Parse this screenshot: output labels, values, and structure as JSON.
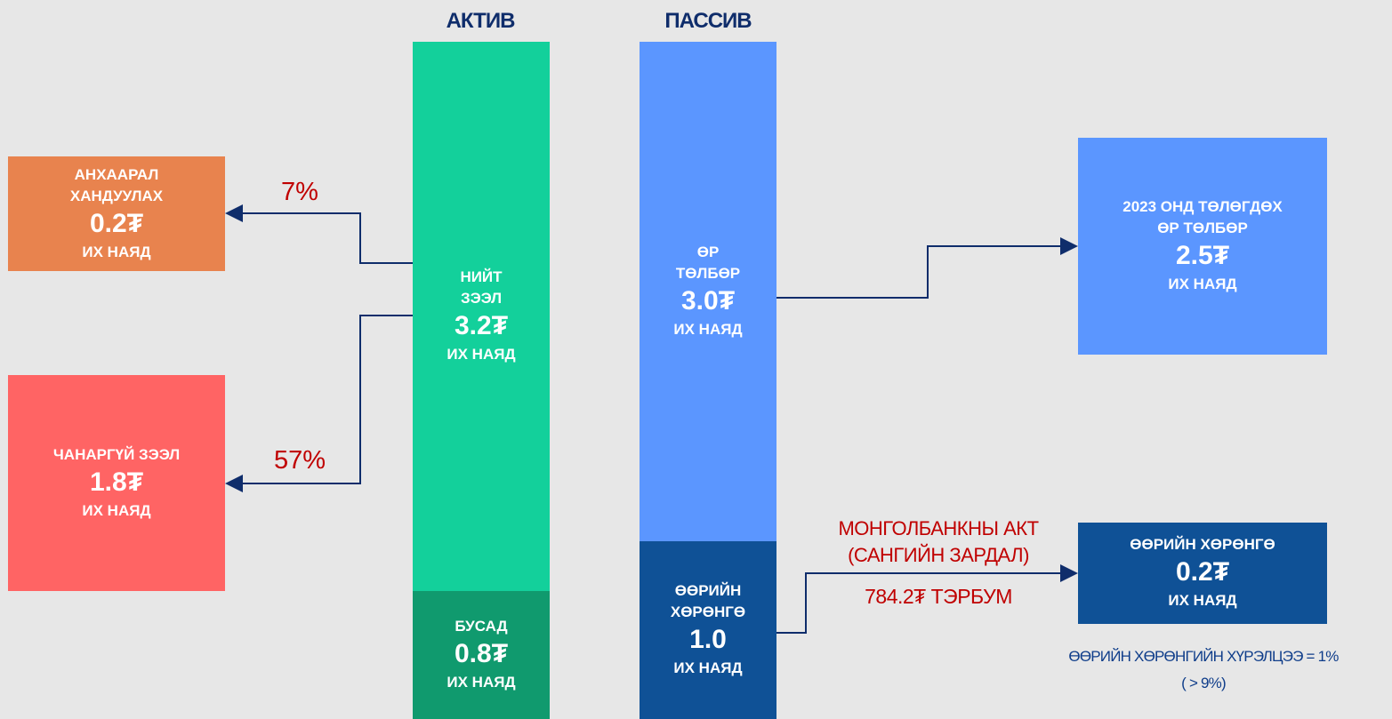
{
  "headers": {
    "assets": "АКТИВ",
    "liabilities": "ПАССИВ"
  },
  "nodes": {
    "watch": {
      "label": [
        "АНХААРАЛ",
        "ХАНДУУЛАХ"
      ],
      "value": "0.2₮",
      "unit": "ИХ НАЯД"
    },
    "bad_loans": {
      "label": [
        "ЧАНАРГҮЙ ЗЭЭЛ"
      ],
      "value": "1.8₮",
      "unit": "ИХ НАЯД"
    },
    "total_loans": {
      "label": [
        "НИЙТ",
        "ЗЭЭЛ"
      ],
      "value": "3.2₮",
      "unit": "ИХ НАЯД"
    },
    "other": {
      "label": [
        "БУСАД"
      ],
      "value": "0.8₮",
      "unit": "ИХ НАЯД"
    },
    "debt": {
      "label": [
        "ӨР",
        "ТӨЛБӨР"
      ],
      "value": "3.0₮",
      "unit": "ИХ НАЯД"
    },
    "equity": {
      "label": [
        "ӨӨРИЙН",
        "ХӨРӨНГӨ"
      ],
      "value": "1.0",
      "unit": "ИХ НАЯД"
    },
    "debt_2023": {
      "label": [
        "2023 ОНД ТӨЛӨГДӨХ",
        "ӨР ТӨЛБӨР"
      ],
      "value": "2.5₮",
      "unit": "ИХ НАЯД"
    },
    "equity_after": {
      "label": [
        "ӨӨРИЙН ХӨРӨНГӨ"
      ],
      "value": "0.2₮",
      "unit": "ИХ НАЯД"
    }
  },
  "edges": {
    "watch_share": "7%",
    "bad_share": "57%",
    "central_bank": [
      "МОНГОЛБАНКНЫ АКТ",
      "(САНГИЙН ЗАРДАЛ)"
    ],
    "central_bank_amount": "784.2₮ ТЭРБУМ"
  },
  "note": [
    "ӨӨРИЙН ХӨРӨНГИЙН ХҮРЭЛЦЭЭ = 1%",
    "( > 9%)"
  ]
}
